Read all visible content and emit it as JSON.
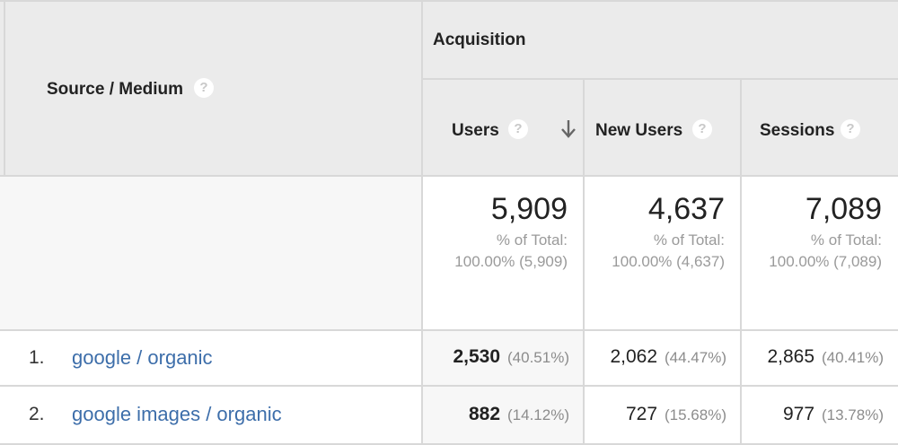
{
  "header": {
    "dimension_label": "Source / Medium",
    "group_label": "Acquisition",
    "columns": [
      {
        "label": "Users",
        "sorted_desc": true
      },
      {
        "label": "New Users",
        "sorted_desc": false
      },
      {
        "label": "Sessions",
        "sorted_desc": false
      }
    ],
    "help_glyph": "?"
  },
  "totals": [
    {
      "value": "5,909",
      "pct_label": "% of Total:",
      "pct_value": "100.00% (5,909)"
    },
    {
      "value": "4,637",
      "pct_label": "% of Total:",
      "pct_value": "100.00% (4,637)"
    },
    {
      "value": "7,089",
      "pct_label": "% of Total:",
      "pct_value": "100.00% (7,089)"
    }
  ],
  "rows": [
    {
      "index": "1.",
      "source": "google / organic",
      "users": "2,530",
      "users_pct": "(40.51%)",
      "new_users": "2,062",
      "new_users_pct": "(44.47%)",
      "sessions": "2,865",
      "sessions_pct": "(40.41%)"
    },
    {
      "index": "2.",
      "source": "google images / organic",
      "users": "882",
      "users_pct": "(14.12%)",
      "new_users": "727",
      "new_users_pct": "(15.68%)",
      "sessions": "977",
      "sessions_pct": "(13.78%)"
    }
  ],
  "colors": {
    "header_bg": "#ebebeb",
    "totals_bg": "#f7f7f7",
    "link": "#3d6eaa",
    "muted_text": "#9a9a9a",
    "border": "#d8d8d8"
  }
}
